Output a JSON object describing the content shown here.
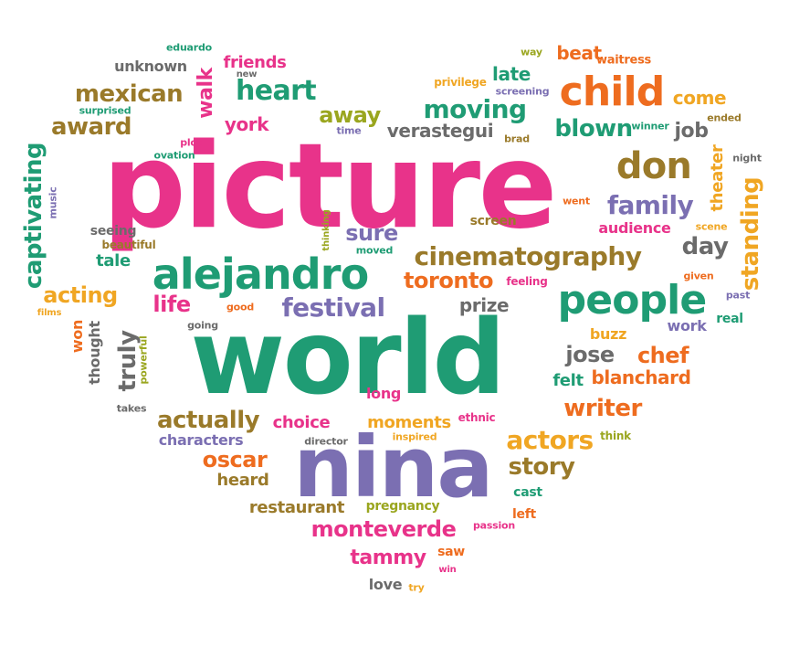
{
  "palette": {
    "pink": "#e8338a",
    "green": "#1f9c74",
    "purple": "#7b6fb2",
    "orange": "#ee6c1f",
    "olive": "#9aa61f",
    "gold": "#f0a623",
    "brown": "#9a7a2a",
    "gray": "#6b6b6b"
  },
  "words": [
    {
      "t": "picture",
      "c": "pink"
    },
    {
      "t": "world",
      "c": "green"
    },
    {
      "t": "nina",
      "c": "purple"
    },
    {
      "t": "alejandro",
      "c": "green"
    },
    {
      "t": "people",
      "c": "green"
    },
    {
      "t": "child",
      "c": "orange"
    },
    {
      "t": "don",
      "c": "brown"
    },
    {
      "t": "cinematography",
      "c": "brown"
    },
    {
      "t": "monteverde",
      "c": "pink"
    },
    {
      "t": "captivating",
      "c": "green"
    },
    {
      "t": "standing",
      "c": "gold"
    },
    {
      "t": "heart",
      "c": "green"
    },
    {
      "t": "mexican",
      "c": "brown"
    },
    {
      "t": "award",
      "c": "brown"
    },
    {
      "t": "moving",
      "c": "green"
    },
    {
      "t": "verastegui",
      "c": "gray"
    },
    {
      "t": "blown",
      "c": "green"
    },
    {
      "t": "family",
      "c": "purple"
    },
    {
      "t": "festival",
      "c": "purple"
    },
    {
      "t": "toronto",
      "c": "orange"
    },
    {
      "t": "actually",
      "c": "brown"
    },
    {
      "t": "writer",
      "c": "orange"
    },
    {
      "t": "actors",
      "c": "gold"
    },
    {
      "t": "story",
      "c": "brown"
    },
    {
      "t": "tammy",
      "c": "pink"
    },
    {
      "t": "oscar",
      "c": "orange"
    },
    {
      "t": "restaurant",
      "c": "brown"
    },
    {
      "t": "blanchard",
      "c": "orange"
    },
    {
      "t": "chef",
      "c": "orange"
    },
    {
      "t": "jose",
      "c": "gray"
    },
    {
      "t": "truly",
      "c": "gray"
    },
    {
      "t": "acting",
      "c": "gold"
    },
    {
      "t": "life",
      "c": "pink"
    },
    {
      "t": "day",
      "c": "gray"
    },
    {
      "t": "away",
      "c": "olive"
    },
    {
      "t": "york",
      "c": "pink"
    },
    {
      "t": "walk",
      "c": "pink"
    },
    {
      "t": "friends",
      "c": "pink"
    },
    {
      "t": "unknown",
      "c": "gray"
    },
    {
      "t": "late",
      "c": "green"
    },
    {
      "t": "beat",
      "c": "orange"
    },
    {
      "t": "come",
      "c": "gold"
    },
    {
      "t": "job",
      "c": "gray"
    },
    {
      "t": "theater",
      "c": "gold"
    },
    {
      "t": "sure",
      "c": "purple"
    },
    {
      "t": "tale",
      "c": "green"
    },
    {
      "t": "prize",
      "c": "gray"
    },
    {
      "t": "choice",
      "c": "pink"
    },
    {
      "t": "moments",
      "c": "gold"
    },
    {
      "t": "long",
      "c": "pink"
    },
    {
      "t": "heard",
      "c": "brown"
    },
    {
      "t": "characters",
      "c": "purple"
    },
    {
      "t": "felt",
      "c": "green"
    },
    {
      "t": "buzz",
      "c": "gold"
    },
    {
      "t": "work",
      "c": "purple"
    },
    {
      "t": "thought",
      "c": "gray"
    },
    {
      "t": "won",
      "c": "orange"
    },
    {
      "t": "audience",
      "c": "pink"
    },
    {
      "t": "cast",
      "c": "green"
    },
    {
      "t": "saw",
      "c": "orange"
    },
    {
      "t": "love",
      "c": "gray"
    },
    {
      "t": "pregnancy",
      "c": "olive"
    },
    {
      "t": "left",
      "c": "orange"
    },
    {
      "t": "screen",
      "c": "brown"
    },
    {
      "t": "seeing",
      "c": "gray"
    },
    {
      "t": "beautiful",
      "c": "brown"
    },
    {
      "t": "ethnic",
      "c": "pink"
    },
    {
      "t": "think",
      "c": "olive"
    },
    {
      "t": "real",
      "c": "green"
    },
    {
      "t": "eduardo",
      "c": "green"
    },
    {
      "t": "new",
      "c": "gray"
    },
    {
      "t": "surprised",
      "c": "green"
    },
    {
      "t": "plot",
      "c": "pink"
    },
    {
      "t": "ovation",
      "c": "green"
    },
    {
      "t": "music",
      "c": "purple"
    },
    {
      "t": "time",
      "c": "purple"
    },
    {
      "t": "brad",
      "c": "brown"
    },
    {
      "t": "way",
      "c": "olive"
    },
    {
      "t": "privilege",
      "c": "gold"
    },
    {
      "t": "screening",
      "c": "purple"
    },
    {
      "t": "waitress",
      "c": "orange"
    },
    {
      "t": "winner",
      "c": "green"
    },
    {
      "t": "ended",
      "c": "brown"
    },
    {
      "t": "night",
      "c": "gray"
    },
    {
      "t": "went",
      "c": "orange"
    },
    {
      "t": "scene",
      "c": "gold"
    },
    {
      "t": "thinking",
      "c": "olive"
    },
    {
      "t": "moved",
      "c": "green"
    },
    {
      "t": "good",
      "c": "orange"
    },
    {
      "t": "going",
      "c": "gray"
    },
    {
      "t": "feeling",
      "c": "pink"
    },
    {
      "t": "given",
      "c": "orange"
    },
    {
      "t": "past",
      "c": "purple"
    },
    {
      "t": "films",
      "c": "gold"
    },
    {
      "t": "powerful",
      "c": "olive"
    },
    {
      "t": "takes",
      "c": "gray"
    },
    {
      "t": "director",
      "c": "gray"
    },
    {
      "t": "inspired",
      "c": "gold"
    },
    {
      "t": "passion",
      "c": "pink"
    },
    {
      "t": "win",
      "c": "pink"
    },
    {
      "t": "try",
      "c": "gold"
    }
  ]
}
